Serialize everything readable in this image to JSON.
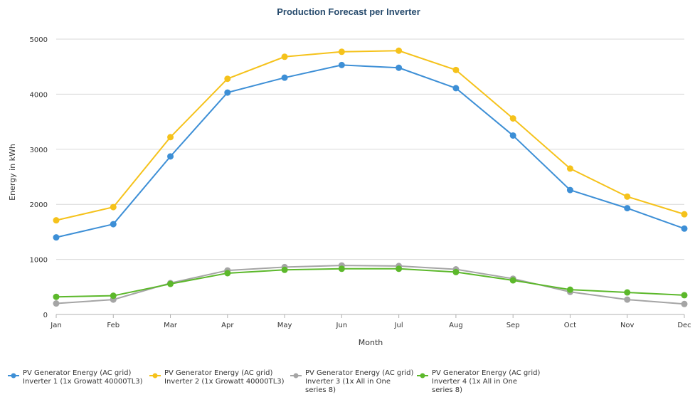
{
  "chart_data": {
    "type": "line",
    "title": "Production Forecast per Inverter",
    "xlabel": "Month",
    "ylabel": "Energy in kWh",
    "categories": [
      "Jan",
      "Feb",
      "Mar",
      "Apr",
      "May",
      "Jun",
      "Jul",
      "Aug",
      "Sep",
      "Oct",
      "Nov",
      "Dec"
    ],
    "ylim": [
      0,
      5000
    ],
    "yticks": [
      0,
      1000,
      2000,
      3000,
      4000,
      5000
    ],
    "grid": true,
    "legend_position": "bottom",
    "series": [
      {
        "legend_lines": [
          "PV Generator Energy (AC grid)",
          "Inverter 1 (1x Growatt 40000TL3)"
        ],
        "color": "#3d8fd6",
        "values": [
          1400,
          1640,
          2870,
          4030,
          4300,
          4530,
          4480,
          4110,
          3250,
          2260,
          1930,
          1560
        ]
      },
      {
        "legend_lines": [
          "PV Generator Energy (AC grid)",
          "Inverter 2 (1x Growatt 40000TL3)"
        ],
        "color": "#f5c21b",
        "values": [
          1710,
          1950,
          3220,
          4280,
          4680,
          4770,
          4790,
          4440,
          3560,
          2650,
          2140,
          1820
        ]
      },
      {
        "legend_lines": [
          "PV Generator Energy (AC grid)",
          "Inverter 3 (1x All in One",
          "series 8)"
        ],
        "color": "#a5a5a5",
        "values": [
          200,
          270,
          570,
          800,
          860,
          890,
          880,
          820,
          650,
          410,
          270,
          190
        ]
      },
      {
        "legend_lines": [
          "PV Generator Energy (AC grid)",
          "Inverter 4 (1x All in One",
          "series 8)"
        ],
        "color": "#5cb82b",
        "values": [
          320,
          340,
          555,
          750,
          810,
          830,
          830,
          770,
          620,
          450,
          400,
          350
        ]
      }
    ]
  }
}
